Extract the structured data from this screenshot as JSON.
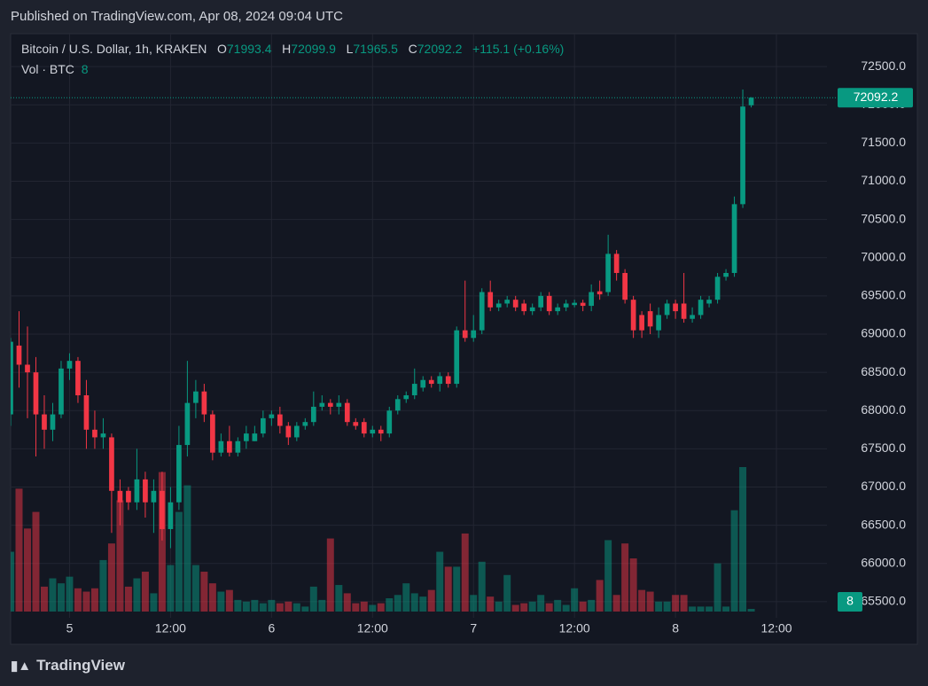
{
  "header": {
    "published": "Published on TradingView.com, Apr 08, 2024 09:04 UTC"
  },
  "footer": {
    "brand": "TradingView"
  },
  "chart_data": {
    "type": "candlestick",
    "title": "Bitcoin / U.S. Dollar, 1h, KRAKEN",
    "open_label": "O",
    "high_label": "H",
    "low_label": "L",
    "close_label": "C",
    "change": "+115.1 (+0.16%)",
    "volume_label": "Vol · BTC",
    "up_color": "#089981",
    "down_color": "#f23645",
    "open": [
      67950,
      68850,
      68600,
      68500,
      67950,
      67750,
      67950,
      68550,
      68650,
      68200,
      67750,
      67650,
      67650,
      66950,
      66950,
      66800,
      67100,
      66800,
      66950,
      66450,
      66800,
      67550,
      68100,
      68250,
      67950,
      67450,
      67600,
      67450,
      67600,
      67600,
      67700,
      67900,
      67950,
      67800,
      67650,
      67800,
      67850,
      68050,
      68100,
      68050,
      68100,
      67850,
      67850,
      67700,
      67750,
      67700,
      68000,
      68150,
      68200,
      68300,
      68400,
      68350,
      68450,
      68350,
      69050,
      68950,
      69050,
      69550,
      69350,
      69400,
      69450,
      69400,
      69300,
      69350,
      69500,
      69300,
      69350,
      69380,
      69410,
      69370,
      69560,
      69550,
      70050,
      69800,
      69450,
      69250,
      69300,
      69050,
      69250,
      69400,
      69400,
      69200,
      69250,
      69400,
      69450,
      69750,
      69800,
      70700,
      71993.4
    ],
    "high": [
      68950,
      69300,
      69100,
      68700,
      68200,
      68100,
      68650,
      68750,
      68700,
      68400,
      68000,
      67900,
      67700,
      67100,
      67000,
      67500,
      67200,
      67100,
      67200,
      67000,
      67800,
      68650,
      68400,
      68350,
      68000,
      67700,
      67800,
      67650,
      67800,
      67800,
      68000,
      68000,
      68050,
      67850,
      67850,
      67900,
      68250,
      68200,
      68150,
      68200,
      68150,
      67900,
      67900,
      67800,
      67800,
      68050,
      68200,
      68250,
      68550,
      68450,
      68450,
      68500,
      68500,
      69100,
      69700,
      69250,
      69600,
      69700,
      69450,
      69500,
      69500,
      69450,
      69400,
      69550,
      69550,
      69400,
      69450,
      69450,
      69450,
      69650,
      69700,
      70300,
      70100,
      69850,
      69500,
      69300,
      69400,
      69350,
      69450,
      69450,
      69800,
      69350,
      69500,
      69500,
      69800,
      69850,
      70800,
      72200,
      72099.9
    ],
    "low": [
      67800,
      68300,
      67900,
      67400,
      67500,
      67600,
      67900,
      68400,
      68100,
      67500,
      67500,
      67500,
      66400,
      66500,
      66700,
      66700,
      66600,
      66400,
      66300,
      66200,
      66700,
      67400,
      67900,
      67850,
      67350,
      67400,
      67400,
      67400,
      67500,
      67600,
      67650,
      67800,
      67700,
      67550,
      67600,
      67750,
      67800,
      68000,
      67950,
      67950,
      67800,
      67750,
      67650,
      67650,
      67600,
      67650,
      67950,
      68100,
      68150,
      68250,
      68300,
      68250,
      68300,
      68300,
      68900,
      68900,
      69000,
      69300,
      69300,
      69350,
      69300,
      69250,
      69250,
      69300,
      69250,
      69250,
      69300,
      69350,
      69300,
      69300,
      69450,
      69500,
      69700,
      69400,
      68950,
      68950,
      69000,
      68950,
      69200,
      69200,
      69150,
      69150,
      69200,
      69350,
      69400,
      69700,
      69750,
      70650,
      71965.5
    ],
    "close": [
      68900,
      68600,
      68500,
      67950,
      67750,
      67950,
      68550,
      68650,
      68200,
      67750,
      67650,
      67700,
      66950,
      66800,
      66800,
      67100,
      66800,
      66950,
      66450,
      66800,
      67550,
      68100,
      68250,
      67950,
      67450,
      67600,
      67450,
      67600,
      67700,
      67700,
      67900,
      67950,
      67800,
      67650,
      67800,
      67850,
      68050,
      68100,
      68050,
      68100,
      67850,
      67800,
      67700,
      67750,
      67700,
      68000,
      68150,
      68200,
      68350,
      68400,
      68350,
      68450,
      68350,
      69050,
      68950,
      69050,
      69550,
      69350,
      69400,
      69450,
      69350,
      69300,
      69350,
      69500,
      69300,
      69350,
      69400,
      69410,
      69370,
      69550,
      69520,
      70050,
      69800,
      69450,
      69050,
      69050,
      69100,
      69250,
      69400,
      69300,
      69200,
      69250,
      69450,
      69450,
      69750,
      69800,
      70700,
      71977.1,
      72092.2
    ],
    "volume": [
      180,
      370,
      250,
      300,
      75,
      100,
      85,
      105,
      70,
      60,
      70,
      155,
      205,
      335,
      75,
      100,
      120,
      55,
      420,
      140,
      300,
      380,
      140,
      120,
      85,
      60,
      65,
      35,
      30,
      35,
      25,
      35,
      25,
      30,
      25,
      15,
      75,
      35,
      220,
      80,
      55,
      25,
      30,
      20,
      25,
      40,
      50,
      85,
      55,
      45,
      65,
      180,
      135,
      135,
      235,
      50,
      150,
      45,
      30,
      110,
      20,
      25,
      30,
      50,
      25,
      35,
      20,
      70,
      30,
      35,
      95,
      215,
      50,
      205,
      160,
      65,
      60,
      30,
      30,
      50,
      50,
      15,
      15,
      15,
      145,
      15,
      305,
      435,
      8
    ],
    "xlim": [
      0,
      97
    ],
    "xticks": [
      {
        "value": 7,
        "label": "5"
      },
      {
        "value": 19,
        "label": "12:00"
      },
      {
        "value": 31,
        "label": "6"
      },
      {
        "value": 43,
        "label": "12:00"
      },
      {
        "value": 55,
        "label": "7"
      },
      {
        "value": 67,
        "label": "12:00"
      },
      {
        "value": 79,
        "label": "8"
      },
      {
        "value": 91,
        "label": "12:00"
      }
    ],
    "ylim": [
      65290,
      72930
    ],
    "yticks": [
      {
        "value": 65500,
        "label": "65500.0"
      },
      {
        "value": 66000,
        "label": "66000.0"
      },
      {
        "value": 66500,
        "label": "66500.0"
      },
      {
        "value": 67000,
        "label": "67000.0"
      },
      {
        "value": 67500,
        "label": "67500.0"
      },
      {
        "value": 68000,
        "label": "68000.0"
      },
      {
        "value": 68500,
        "label": "68500.0"
      },
      {
        "value": 69000,
        "label": "69000.0"
      },
      {
        "value": 69500,
        "label": "69500.0"
      },
      {
        "value": 70000,
        "label": "70000.0"
      },
      {
        "value": 70500,
        "label": "70500.0"
      },
      {
        "value": 71000,
        "label": "71000.0"
      },
      {
        "value": 71500,
        "label": "71500.0"
      },
      {
        "value": 72000,
        "label": "72000.0"
      },
      {
        "value": 72500,
        "label": "72500.0"
      }
    ],
    "grid": true
  }
}
